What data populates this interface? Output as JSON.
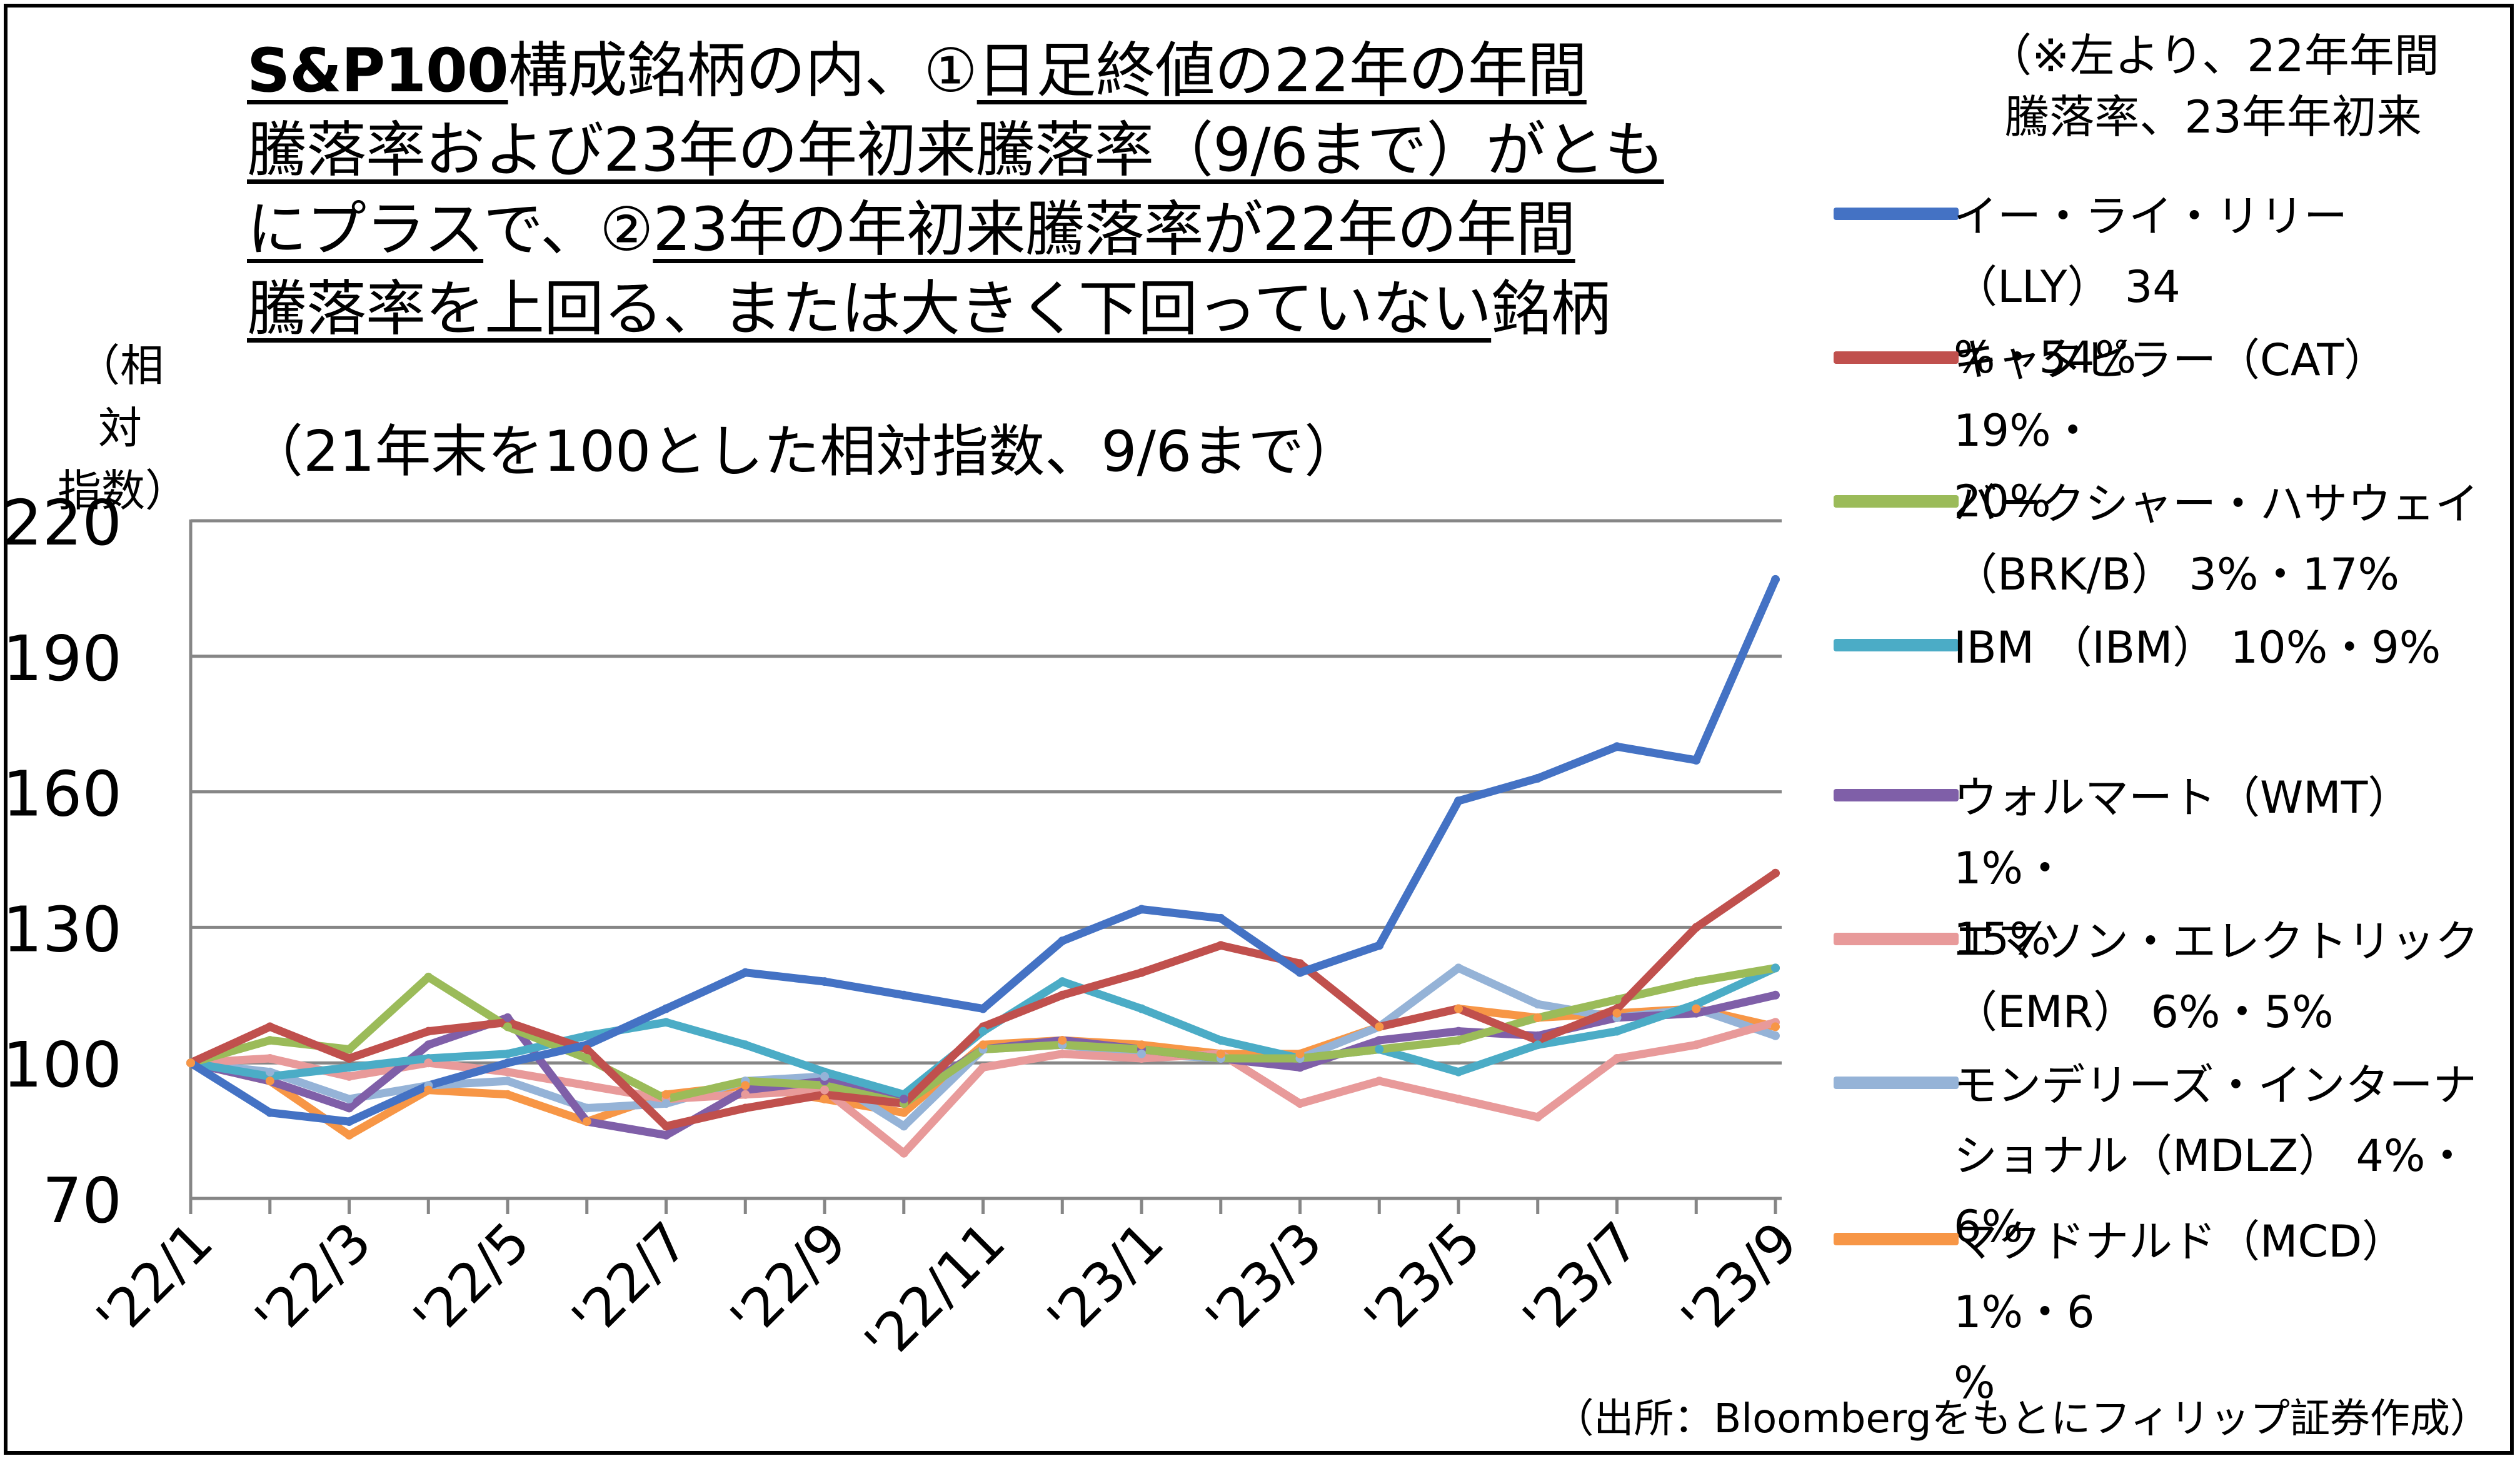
{
  "title": {
    "line1_a": "S&P100",
    "line1_b": "構成銘柄の内、①",
    "line1_c": "日足終値の22年の年間",
    "line2": "騰落率および23年の年初来騰落率（9/6まで）がとも",
    "line3_a": "にプラス",
    "line3_b": "で、②",
    "line3_c": "23年の年初来騰落率が22年の年間",
    "line4_a": "騰落率を上回る、または大きく下回っていない",
    "line4_b": "銘柄"
  },
  "subtitle": "（21年末を100とした相対指数、9/6まで）",
  "ylabel": {
    "line1": "（相対",
    "line2": "指数）"
  },
  "legend_header": {
    "line1": "（※左より、22年年間",
    "line2": "騰落率、23年年初来"
  },
  "source": "（出所：Bloombergをもとにフィリップ証券作成）",
  "legend": [
    {
      "line1": "イー・ライ・リリー（LLY） 34",
      "line2": "%・54%",
      "color": "#4472c4"
    },
    {
      "line1": "キャタピラー（CAT） 19%・",
      "line2": "20%",
      "color": "#c0504d"
    },
    {
      "line1": "バークシャー・ハサウェイ",
      "line2": "（BRK/B） 3%・17%",
      "color": "#9bbb59"
    },
    {
      "line1": "IBM （IBM） 10%・9%",
      "line2": "",
      "color": "#4bacc6"
    },
    {
      "line1": "ウォルマート（WMT） 1%・",
      "line2": "15%",
      "color": "#7f5fa8"
    },
    {
      "line1": "エマソン・エレクトリック",
      "line2": "（EMR） 6%・5%",
      "color": "#e89a9a"
    },
    {
      "line1": "モンデリーズ・インターナ",
      "line2": "ショナル（MDLZ） 4%・6%",
      "color": "#95b3d7"
    },
    {
      "line1": "マクドナルド（MCD） 1%・6",
      "line2": "%",
      "color": "#f79646"
    }
  ],
  "chart_data": {
    "type": "line",
    "title": "S&P100構成銘柄の内、①日足終値の22年の年間騰落率および23年の年初来騰落率（9/6まで）がともにプラスで、②23年の年初来騰落率が22年の年間騰落率を上回る、または大きく下回っていない銘柄",
    "subtitle": "（21年末を100とした相対指数、9/6まで）",
    "ylabel": "（相対指数）",
    "xlabel": "",
    "ylim": [
      70,
      220
    ],
    "yticks": [
      70,
      100,
      130,
      160,
      190,
      220
    ],
    "grid": true,
    "legend_position": "right",
    "x_tick_labels": [
      "'22/1",
      "'22/3",
      "'22/5",
      "'22/7",
      "'22/9",
      "'22/11",
      "'23/1",
      "'23/3",
      "'23/5",
      "'23/7",
      "'23/9"
    ],
    "x_months": [
      "2022-01",
      "2022-02",
      "2022-03",
      "2022-04",
      "2022-05",
      "2022-06",
      "2022-07",
      "2022-08",
      "2022-09",
      "2022-10",
      "2022-11",
      "2022-12",
      "2023-01",
      "2023-02",
      "2023-03",
      "2023-04",
      "2023-05",
      "2023-06",
      "2023-07",
      "2023-08",
      "2023-09"
    ],
    "series": [
      {
        "name": "イー・ライ・リリー（LLY） 34%・54%",
        "color": "#4472c4",
        "values": [
          100,
          89,
          87,
          95,
          100,
          104,
          112,
          120,
          118,
          115,
          112,
          127,
          134,
          132,
          120,
          126,
          158,
          163,
          170,
          167,
          207
        ]
      },
      {
        "name": "キャタピラー（CAT） 19%・20%",
        "color": "#c0504d",
        "values": [
          100,
          108,
          101,
          107,
          109,
          103,
          86,
          90,
          93,
          91,
          108,
          115,
          120,
          126,
          122,
          108,
          112,
          105,
          112,
          130,
          142
        ]
      },
      {
        "name": "バークシャー・ハサウェイ（BRK/B） 3%・17%",
        "color": "#9bbb59",
        "values": [
          100,
          105,
          103,
          119,
          108,
          101,
          92,
          96,
          95,
          91,
          103,
          104,
          103,
          101,
          101,
          103,
          105,
          110,
          114,
          118,
          121
        ]
      },
      {
        "name": "IBM （IBM） 10%・9%",
        "color": "#4bacc6",
        "values": [
          100,
          97,
          99,
          101,
          102,
          106,
          109,
          104,
          98,
          93,
          107,
          118,
          112,
          105,
          101,
          103,
          98,
          104,
          107,
          113,
          121
        ]
      },
      {
        "name": "ウォルマート（WMT） 1%・15%",
        "color": "#7f5fa8",
        "values": [
          100,
          96,
          90,
          104,
          110,
          87,
          84,
          94,
          96,
          92,
          103,
          105,
          103,
          101,
          99,
          105,
          107,
          106,
          110,
          111,
          115
        ]
      },
      {
        "name": "エマソン・エレクトリック（EMR） 6%・5%",
        "color": "#e89a9a",
        "values": [
          100,
          101,
          97,
          100,
          98,
          95,
          92,
          93,
          94,
          80,
          99,
          102,
          101,
          102,
          91,
          96,
          92,
          88,
          101,
          104,
          109
        ]
      },
      {
        "name": "モンデリーズ・インターナショナル（MDLZ） 4%・6%",
        "color": "#95b3d7",
        "values": [
          100,
          98,
          92,
          95,
          96,
          90,
          91,
          96,
          97,
          86,
          103,
          104,
          102,
          101,
          101,
          108,
          121,
          113,
          110,
          112,
          106
        ]
      },
      {
        "name": "マクドナルド（MCD） 1%・6%",
        "color": "#f79646",
        "values": [
          100,
          96,
          84,
          94,
          93,
          87,
          93,
          95,
          92,
          89,
          104,
          105,
          104,
          102,
          102,
          108,
          112,
          110,
          111,
          112,
          108
        ]
      }
    ]
  }
}
